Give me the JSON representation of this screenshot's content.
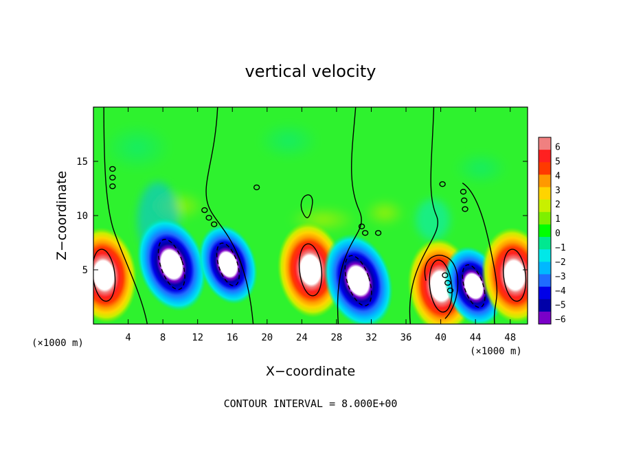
{
  "chart_data": {
    "type": "heatmap",
    "title": "vertical velocity",
    "xlabel": "X−coordinate",
    "ylabel": "Z−coordinate",
    "x_unit_label": "(×1000 m)",
    "y_unit_label": "(×1000 m)",
    "xlim": [
      0,
      50
    ],
    "ylim": [
      0,
      20
    ],
    "x_ticks": [
      4,
      8,
      12,
      16,
      20,
      24,
      28,
      32,
      36,
      40,
      44,
      48
    ],
    "y_ticks": [
      5,
      10,
      15
    ],
    "colorbar": {
      "ticks": [
        6,
        5,
        4,
        3,
        2,
        1,
        0,
        -1,
        -2,
        -3,
        -4,
        -5,
        -6
      ],
      "tick_labels": [
        "6",
        "5",
        "4",
        "3",
        "2",
        "1",
        "0",
        "−1",
        "−2",
        "−3",
        "−4",
        "−5",
        "−6"
      ],
      "colors": [
        "#f08080",
        "#ff2020",
        "#ff3a00",
        "#ff9900",
        "#ffd400",
        "#c8f000",
        "#7ef000",
        "#00ff00",
        "#00e890",
        "#00e8e8",
        "#00b8ff",
        "#1f6cff",
        "#0000e8",
        "#0000a8",
        "#7a00c8"
      ]
    },
    "features": [
      {
        "kind": "updraft",
        "x": 1.2,
        "z": 4.5,
        "peak": 8
      },
      {
        "kind": "downdraft",
        "x": 9.0,
        "z": 5.5,
        "peak": -8
      },
      {
        "kind": "downdraft",
        "x": 15.5,
        "z": 5.5,
        "peak": -7
      },
      {
        "kind": "updraft",
        "x": 25.0,
        "z": 5.0,
        "peak": 8
      },
      {
        "kind": "downdraft",
        "x": 30.5,
        "z": 4.0,
        "peak": -8
      },
      {
        "kind": "updraft",
        "x": 40.0,
        "z": 3.5,
        "peak": 8
      },
      {
        "kind": "downdraft",
        "x": 43.8,
        "z": 3.5,
        "peak": -7
      },
      {
        "kind": "updraft",
        "x": 48.5,
        "z": 4.5,
        "peak": 8
      }
    ]
  },
  "footer": {
    "contour_interval": "CONTOUR INTERVAL = 8.000E+00"
  }
}
